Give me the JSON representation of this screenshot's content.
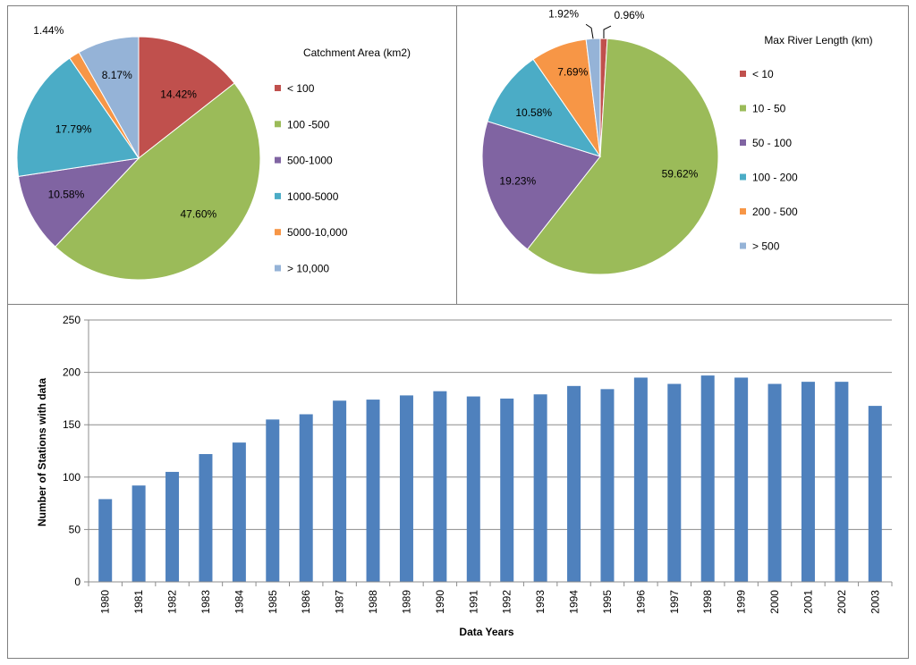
{
  "chart_data": [
    {
      "type": "pie",
      "title": "Catchment Area (km2)",
      "categories": [
        "< 100",
        "100 -500",
        "500-1000",
        "1000-5000",
        "5000-10,000",
        "> 10,000"
      ],
      "values": [
        14.42,
        47.6,
        10.58,
        17.79,
        1.44,
        8.17
      ],
      "labels": [
        "14.42%",
        "47.60%",
        "10.58%",
        "17.79%",
        "1.44%",
        "8.17%"
      ],
      "colors": [
        "#c0504d",
        "#9bbb59",
        "#8064a2",
        "#4bacc6",
        "#f79646",
        "#95b3d7"
      ],
      "legend": "right"
    },
    {
      "type": "pie",
      "title": "Max River Length (km)",
      "categories": [
        "<  10",
        "10 - 50",
        "50 - 100",
        "100 - 200",
        "200 - 500",
        "> 500"
      ],
      "values": [
        0.96,
        59.62,
        19.23,
        10.58,
        7.69,
        1.92
      ],
      "labels": [
        "0.96%",
        "59.62%",
        "19.23%",
        "10.58%",
        "7.69%",
        "1.92%"
      ],
      "colors": [
        "#c0504d",
        "#9bbb59",
        "#8064a2",
        "#4bacc6",
        "#f79646",
        "#95b3d7"
      ],
      "legend": "right"
    },
    {
      "type": "bar",
      "categories": [
        "1980",
        "1981",
        "1982",
        "1983",
        "1984",
        "1985",
        "1986",
        "1987",
        "1988",
        "1989",
        "1990",
        "1991",
        "1992",
        "1993",
        "1994",
        "1995",
        "1996",
        "1997",
        "1998",
        "1999",
        "2000",
        "2001",
        "2002",
        "2003"
      ],
      "values": [
        79,
        92,
        105,
        122,
        133,
        155,
        160,
        173,
        174,
        178,
        182,
        177,
        175,
        179,
        187,
        184,
        195,
        189,
        197,
        195,
        189,
        191,
        191,
        168
      ],
      "xlabel": "Data Years",
      "ylabel": "Number of Stations with data",
      "ylim": [
        0,
        250
      ],
      "yticks": [
        0,
        50,
        100,
        150,
        200,
        250
      ],
      "grid": true,
      "color": "#4f81bd"
    }
  ]
}
